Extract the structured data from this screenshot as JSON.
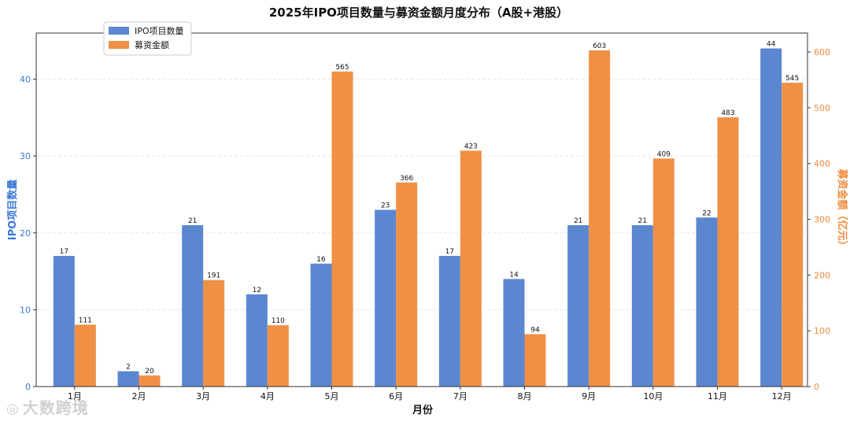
{
  "chart_data": {
    "type": "bar",
    "title": "2025年IPO项目数量与募资金额月度分布（A股+港股）",
    "xlabel": "月份",
    "ylabel_left": "IPO项目数量",
    "ylabel_right": "募资金额（亿元）",
    "categories": [
      "1月",
      "2月",
      "3月",
      "4月",
      "5月",
      "6月",
      "7月",
      "8月",
      "9月",
      "10月",
      "11月",
      "12月"
    ],
    "series": [
      {
        "name": "IPO项目数量",
        "axis": "left",
        "color": "#5b87d0",
        "values": [
          17,
          2,
          21,
          12,
          16,
          23,
          17,
          14,
          21,
          21,
          22,
          44
        ]
      },
      {
        "name": "募资金额",
        "axis": "right",
        "color": "#ef9045",
        "values": [
          111,
          20,
          191,
          110,
          565,
          366,
          423,
          94,
          603,
          409,
          483,
          545
        ]
      }
    ],
    "ylim_left": [
      0,
      46
    ],
    "yticks_left": [
      0,
      10,
      20,
      30,
      40
    ],
    "ylim_right": [
      0,
      634
    ],
    "yticks_right": [
      0,
      100,
      200,
      300,
      400,
      500,
      600
    ],
    "grid": true,
    "legend": "top-left",
    "axis_colors": {
      "left": "#3a78d4",
      "right": "#ef8a3c"
    }
  },
  "watermark": {
    "text": "大数跨境"
  }
}
